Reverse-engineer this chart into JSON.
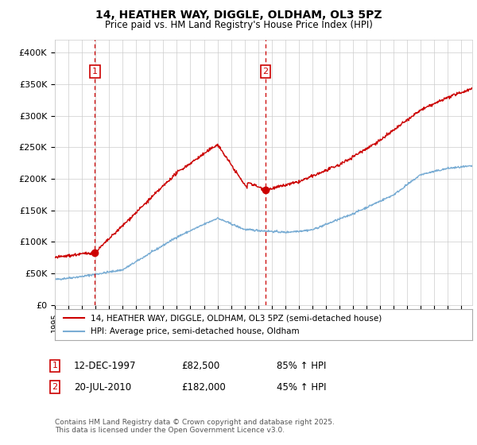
{
  "title": "14, HEATHER WAY, DIGGLE, OLDHAM, OL3 5PZ",
  "subtitle": "Price paid vs. HM Land Registry's House Price Index (HPI)",
  "ylim": [
    0,
    420000
  ],
  "yticks": [
    0,
    50000,
    100000,
    150000,
    200000,
    250000,
    300000,
    350000,
    400000
  ],
  "ytick_labels": [
    "£0",
    "£50K",
    "£100K",
    "£150K",
    "£200K",
    "£250K",
    "£300K",
    "£350K",
    "£400K"
  ],
  "xlim_start": 1995.0,
  "xlim_end": 2025.8,
  "purchase1_date": 1997.95,
  "purchase1_price": 82500,
  "purchase1_label": "1",
  "purchase2_date": 2010.55,
  "purchase2_price": 182000,
  "purchase2_label": "2",
  "line_color_property": "#cc0000",
  "line_color_hpi": "#7aadd4",
  "marker_color": "#cc0000",
  "dashed_vline_color": "#cc0000",
  "background_color": "#ffffff",
  "grid_color": "#cccccc",
  "legend_label_property": "14, HEATHER WAY, DIGGLE, OLDHAM, OL3 5PZ (semi-detached house)",
  "legend_label_hpi": "HPI: Average price, semi-detached house, Oldham",
  "annotation1_date": "12-DEC-1997",
  "annotation1_price": "£82,500",
  "annotation1_hpi": "85% ↑ HPI",
  "annotation2_date": "20-JUL-2010",
  "annotation2_price": "£182,000",
  "annotation2_hpi": "45% ↑ HPI",
  "footnote": "Contains HM Land Registry data © Crown copyright and database right 2025.\nThis data is licensed under the Open Government Licence v3.0."
}
